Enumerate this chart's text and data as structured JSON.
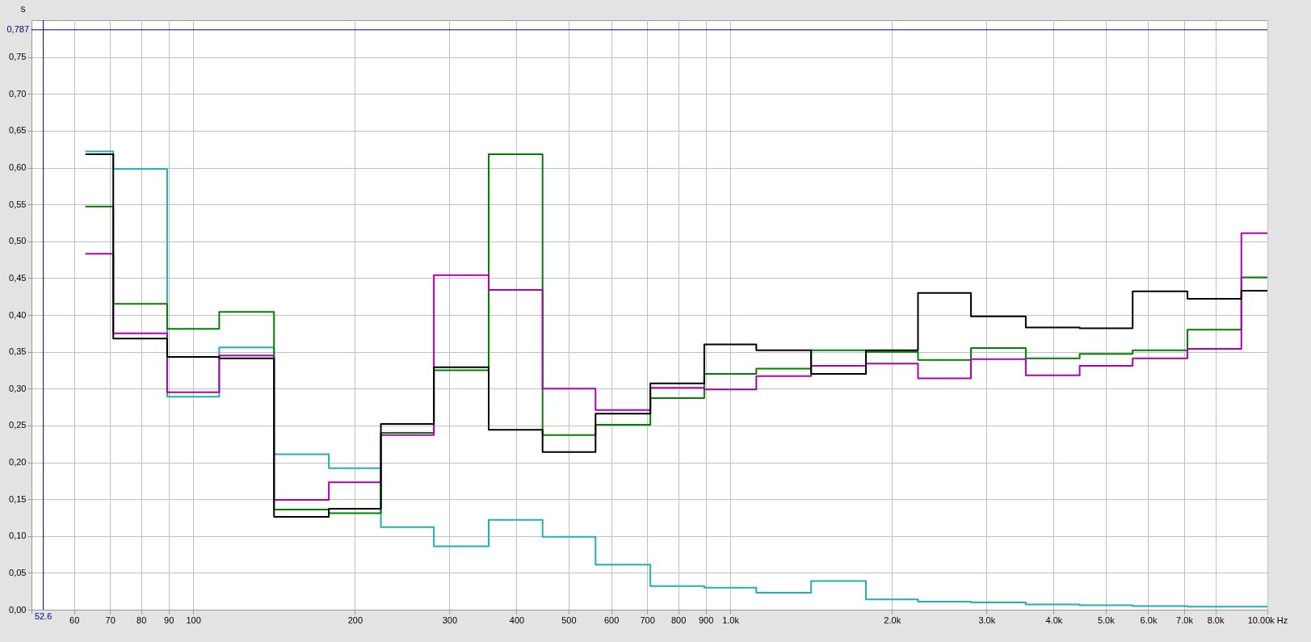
{
  "chart_data": {
    "type": "step",
    "ylabel": "s",
    "log": "x",
    "x": [
      63,
      80,
      100,
      125,
      160,
      200,
      250,
      315,
      400,
      500,
      630,
      800,
      1000,
      1250,
      1600,
      2000,
      2500,
      3150,
      4000,
      5000,
      6300,
      8000,
      10000
    ],
    "series": [
      {
        "color": "#20b0b0",
        "values": [
          0.622,
          0.598,
          0.289,
          0.356,
          0.211,
          0.192,
          0.112,
          0.086,
          0.122,
          0.099,
          0.061,
          0.032,
          0.03,
          0.023,
          0.039,
          0.014,
          0.011,
          0.01,
          0.007,
          0.006,
          0.005,
          0.004,
          0.004
        ]
      },
      {
        "color": "#008000",
        "values": [
          0.547,
          0.415,
          0.381,
          0.404,
          0.136,
          0.131,
          0.24,
          0.325,
          0.618,
          0.237,
          0.251,
          0.287,
          0.32,
          0.327,
          0.352,
          0.35,
          0.339,
          0.355,
          0.341,
          0.347,
          0.352,
          0.38,
          0.451
        ]
      },
      {
        "color": "#b000b0",
        "values": [
          0.483,
          0.375,
          0.295,
          0.345,
          0.149,
          0.173,
          0.237,
          0.454,
          0.434,
          0.3,
          0.271,
          0.301,
          0.299,
          0.317,
          0.331,
          0.334,
          0.314,
          0.34,
          0.318,
          0.331,
          0.341,
          0.354,
          0.511
        ]
      },
      {
        "color": "#000000",
        "values": [
          0.618,
          0.368,
          0.343,
          0.341,
          0.126,
          0.137,
          0.252,
          0.329,
          0.244,
          0.214,
          0.266,
          0.307,
          0.36,
          0.352,
          0.32,
          0.352,
          0.43,
          0.398,
          0.383,
          0.382,
          0.432,
          0.422,
          0.433
        ]
      }
    ],
    "xlim": [
      50,
      10000
    ],
    "xticks": [
      {
        "value": 50,
        "label": null
      },
      60,
      70,
      80,
      90,
      100,
      200,
      300,
      400,
      500,
      600,
      700,
      800,
      900,
      {
        "value": 1000,
        "label": "1.0k"
      },
      {
        "value": 2000,
        "label": "2.0k"
      },
      {
        "value": 3000,
        "label": "3.0k"
      },
      {
        "value": 4000,
        "label": "4.0k"
      },
      {
        "value": 5000,
        "label": "5.0k"
      },
      {
        "value": 6000,
        "label": "6.0k"
      },
      {
        "value": 7000,
        "label": "7.0k"
      },
      {
        "value": 8000,
        "label": "8.0k"
      },
      {
        "value": 10000,
        "label": "10.00k Hz"
      }
    ],
    "ylim": [
      0,
      0.8
    ],
    "yticks": [
      {
        "value": 0,
        "label": "0,00"
      },
      {
        "value": 0.05,
        "label": "0,05"
      },
      {
        "value": 0.1,
        "label": "0,10"
      },
      {
        "value": 0.15,
        "label": "0,15"
      },
      {
        "value": 0.2,
        "label": "0,20"
      },
      {
        "value": 0.25,
        "label": "0,25"
      },
      {
        "value": 0.3,
        "label": "0,30"
      },
      {
        "value": 0.35,
        "label": "0,35"
      },
      {
        "value": 0.4,
        "label": "0,40"
      },
      {
        "value": 0.45,
        "label": "0,45"
      },
      {
        "value": 0.5,
        "label": "0,50"
      },
      {
        "value": 0.55,
        "label": "0,55"
      },
      {
        "value": 0.6,
        "label": "0,60"
      },
      {
        "value": 0.65,
        "label": "0,65"
      },
      {
        "value": 0.7,
        "label": "0,70"
      },
      {
        "value": 0.75,
        "label": "0,75"
      }
    ],
    "grid": true,
    "ref_lines": [
      {
        "axis": "y",
        "value": 0.787,
        "label": "0,787",
        "color": "#00008b"
      },
      {
        "axis": "x",
        "value": 52.6,
        "label": "52.6",
        "color": "#00008b"
      }
    ]
  }
}
